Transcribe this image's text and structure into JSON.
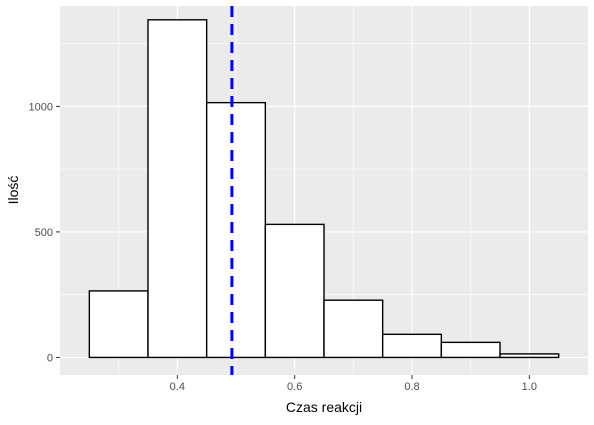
{
  "chart_data": {
    "type": "bar",
    "subtype": "histogram",
    "xlabel": "Czas reakcji",
    "ylabel": "Ilość",
    "xlim": [
      0.2,
      1.1
    ],
    "ylim": [
      -70,
      1400
    ],
    "x_ticks": [
      0.4,
      0.6,
      0.8,
      1.0
    ],
    "x_tick_labels": [
      "0.4",
      "0.6",
      "0.8",
      "1.0"
    ],
    "y_ticks": [
      0,
      500,
      1000
    ],
    "y_tick_labels": [
      "0",
      "500",
      "1000"
    ],
    "bins": [
      {
        "x0": 0.25,
        "x1": 0.35,
        "count": 265
      },
      {
        "x0": 0.35,
        "x1": 0.45,
        "count": 1345
      },
      {
        "x0": 0.45,
        "x1": 0.55,
        "count": 1015
      },
      {
        "x0": 0.55,
        "x1": 0.65,
        "count": 530
      },
      {
        "x0": 0.65,
        "x1": 0.75,
        "count": 228
      },
      {
        "x0": 0.75,
        "x1": 0.85,
        "count": 92
      },
      {
        "x0": 0.85,
        "x1": 0.95,
        "count": 60
      },
      {
        "x0": 0.95,
        "x1": 1.05,
        "count": 14
      }
    ],
    "vline": {
      "x": 0.493,
      "color": "#0000ff",
      "style": "dashed"
    },
    "bar_fill": "#ffffff",
    "bar_stroke": "#000000",
    "panel_background": "#ebebeb",
    "grid": true,
    "grid_color": "#ffffff",
    "legend": "none"
  }
}
